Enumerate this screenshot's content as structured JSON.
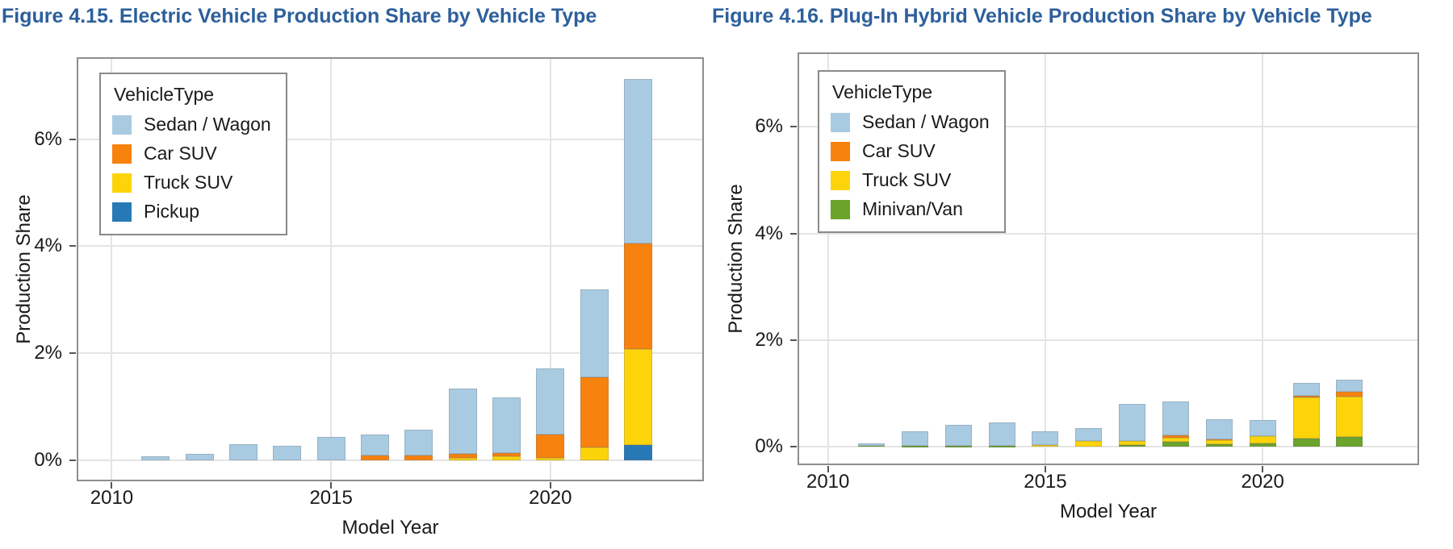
{
  "appearance": {
    "title_color": "#2d5f9b",
    "grid_color": "#e4e4e4",
    "plot_border_color": "#8e8e8e",
    "axis_text_color": "#1a1a1a",
    "background_color": "#ffffff",
    "series_colors": {
      "sedan_wagon": "#a9cbe2",
      "car_suv": "#f8820e",
      "truck_suv": "#fdd40a",
      "pickup": "#2779b5",
      "minivan_van": "#6ba32b"
    }
  },
  "figures": [
    {
      "title": "Figure 4.15. Electric Vehicle Production Share by Vehicle Type",
      "xlabel": "Model Year",
      "ylabel": "Production Share",
      "legend_title": "VehicleType",
      "legend": [
        {
          "label": "Sedan / Wagon",
          "color": "#a9cbe2"
        },
        {
          "label": "Car SUV",
          "color": "#f8820e"
        },
        {
          "label": "Truck SUV",
          "color": "#fdd40a"
        },
        {
          "label": "Pickup",
          "color": "#2779b5"
        }
      ],
      "chart_data": {
        "type": "bar",
        "stacked": true,
        "title": "Figure 4.15. Electric Vehicle Production Share by Vehicle Type",
        "xlabel": "Model Year",
        "ylabel": "Production Share",
        "x": [
          2011,
          2012,
          2013,
          2014,
          2015,
          2016,
          2017,
          2018,
          2019,
          2020,
          2021,
          2022
        ],
        "series": [
          {
            "name": "Pickup",
            "color": "#2779b5",
            "values": [
              0,
              0,
              0,
              0,
              0,
              0,
              0,
              0,
              0,
              0,
              0,
              0.29
            ]
          },
          {
            "name": "Truck SUV",
            "color": "#fdd40a",
            "values": [
              0,
              0,
              0,
              0,
              0,
              0,
              0,
              0.04,
              0.07,
              0.04,
              0.24,
              1.79
            ]
          },
          {
            "name": "Car SUV",
            "color": "#f8820e",
            "values": [
              0,
              0,
              0,
              0,
              0,
              0.09,
              0.09,
              0.08,
              0.07,
              0.44,
              1.31,
              1.97
            ]
          },
          {
            "name": "Sedan/Wagon",
            "color": "#a9cbe2",
            "values": [
              0.08,
              0.12,
              0.3,
              0.27,
              0.44,
              0.39,
              0.48,
              1.22,
              1.03,
              1.24,
              1.65,
              3.08
            ]
          }
        ],
        "totals": [
          0.08,
          0.12,
          0.3,
          0.27,
          0.44,
          0.48,
          0.57,
          1.34,
          1.17,
          1.72,
          3.2,
          7.13
        ],
        "x_ticks": [
          2010,
          2015,
          2020
        ],
        "x_tick_labels": [
          "2010",
          "2015",
          "2020"
        ],
        "y_ticks": [
          0,
          2,
          4,
          6
        ],
        "y_tick_labels": [
          "0%",
          "2%",
          "4%",
          "6%"
        ],
        "xlim": [
          2009.2,
          2023.5
        ],
        "ylim": [
          -0.39,
          7.53
        ],
        "grid": true,
        "legend_position": "upper-left"
      }
    },
    {
      "title": "Figure 4.16. Plug-In Hybrid Vehicle Production Share by Vehicle Type",
      "xlabel": "Model Year",
      "ylabel": "Production Share",
      "legend_title": "VehicleType",
      "legend": [
        {
          "label": "Sedan / Wagon",
          "color": "#a9cbe2"
        },
        {
          "label": "Car SUV",
          "color": "#f8820e"
        },
        {
          "label": "Truck SUV",
          "color": "#fdd40a"
        },
        {
          "label": "Minivan/Van",
          "color": "#6ba32b"
        }
      ],
      "chart_data": {
        "type": "bar",
        "stacked": true,
        "title": "Figure 4.16. Plug-In Hybrid Vehicle Production Share by Vehicle Type",
        "xlabel": "Model Year",
        "ylabel": "Production Share",
        "x": [
          2011,
          2012,
          2013,
          2014,
          2015,
          2016,
          2017,
          2018,
          2019,
          2020,
          2021,
          2022
        ],
        "series": [
          {
            "name": "Minivan/Van",
            "color": "#6ba32b",
            "values": [
              0.02,
              0.01,
              0.01,
              0.01,
              0,
              0,
              0.03,
              0.09,
              0.04,
              0.06,
              0.15,
              0.18
            ]
          },
          {
            "name": "Truck SUV",
            "color": "#fdd40a",
            "values": [
              0,
              0,
              0,
              0,
              0.03,
              0.1,
              0.07,
              0.08,
              0.08,
              0.14,
              0.77,
              0.76
            ]
          },
          {
            "name": "Car SUV",
            "color": "#f8820e",
            "values": [
              0,
              0,
              0,
              0,
              0,
              0,
              0,
              0.04,
              0.02,
              0,
              0.03,
              0.08
            ]
          },
          {
            "name": "Sedan/Wagon",
            "color": "#a9cbe2",
            "values": [
              0.04,
              0.28,
              0.4,
              0.44,
              0.26,
              0.25,
              0.7,
              0.64,
              0.38,
              0.3,
              0.25,
              0.23
            ]
          }
        ],
        "totals": [
          0.06,
          0.29,
          0.41,
          0.45,
          0.29,
          0.35,
          0.8,
          0.85,
          0.52,
          0.5,
          1.2,
          1.25
        ],
        "x_ticks": [
          2010,
          2015,
          2020
        ],
        "x_tick_labels": [
          "2010",
          "2015",
          "2020"
        ],
        "y_ticks": [
          0,
          2,
          4,
          6
        ],
        "y_tick_labels": [
          "0%",
          "2%",
          "4%",
          "6%"
        ],
        "xlim": [
          2009.3,
          2023.6
        ],
        "ylim": [
          -0.35,
          7.4
        ],
        "grid": true,
        "legend_position": "upper-left"
      }
    }
  ]
}
